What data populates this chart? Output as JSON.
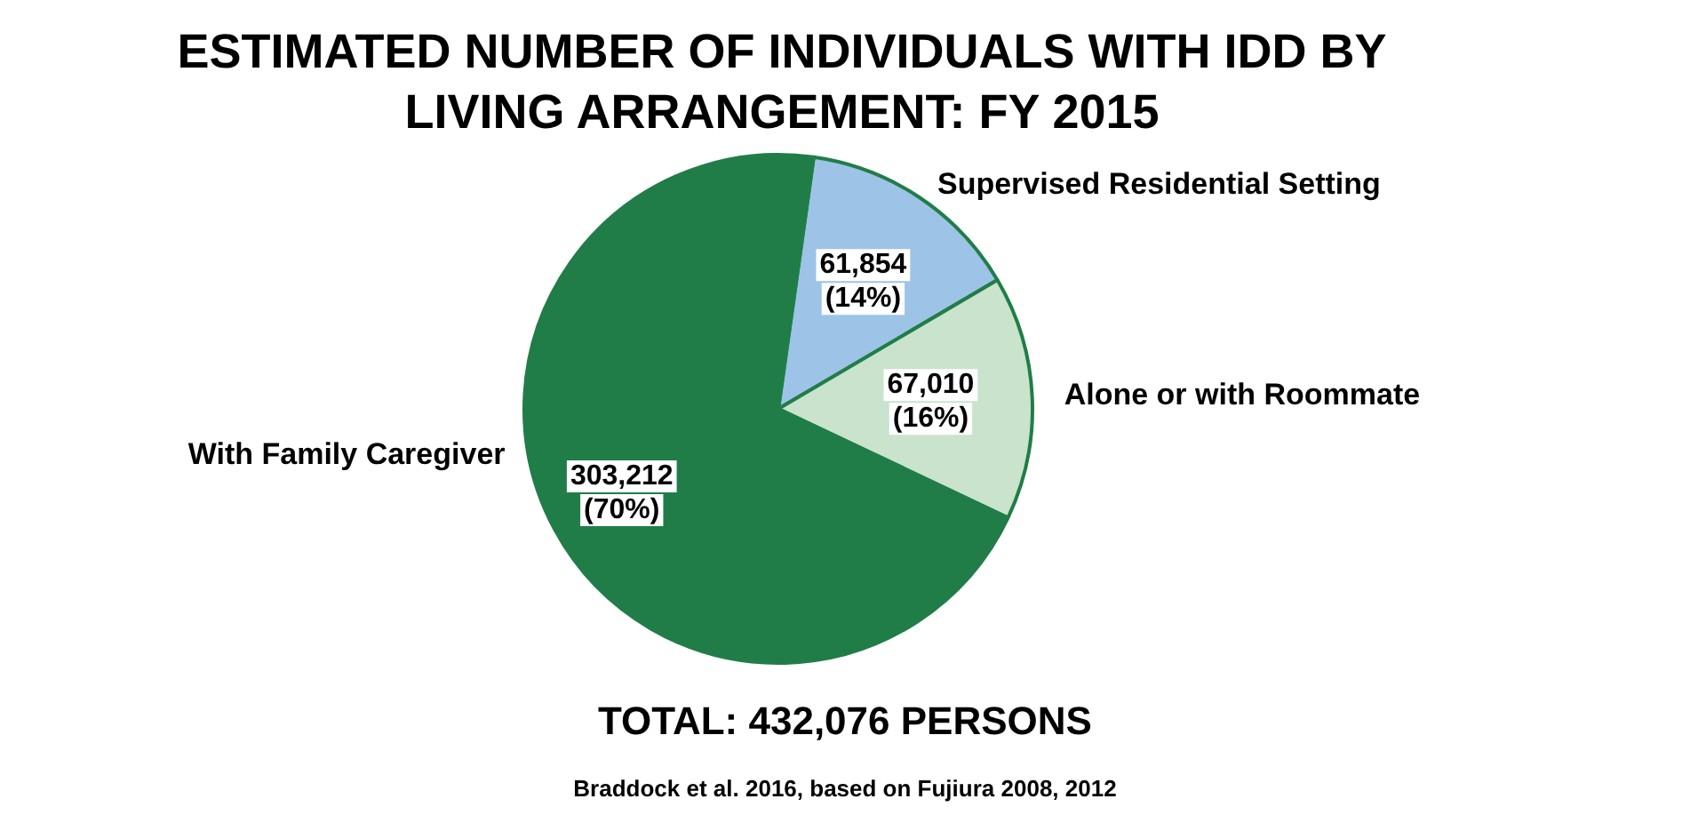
{
  "chart_data": {
    "type": "pie",
    "title": "ESTIMATED NUMBER OF INDIVIDUALS WITH IDD BY LIVING ARRANGEMENT: FY 2015",
    "categories": [
      "Supervised Residential Setting",
      "Alone or with Roommate",
      "With Family Caregiver"
    ],
    "values": [
      61854,
      67010,
      303212
    ],
    "colors": [
      "#9dc3e6",
      "#c9e3cc",
      "#217d48"
    ],
    "value_labels": [
      "61,854\n(14%)",
      "67,010\n(16%)",
      "303,212\n(70%)"
    ],
    "legend": false,
    "annotations": [
      "TOTAL: 432,076 PERSONS",
      "Braddock et al. 2016, based on Fujiura 2008, 2012"
    ]
  }
}
